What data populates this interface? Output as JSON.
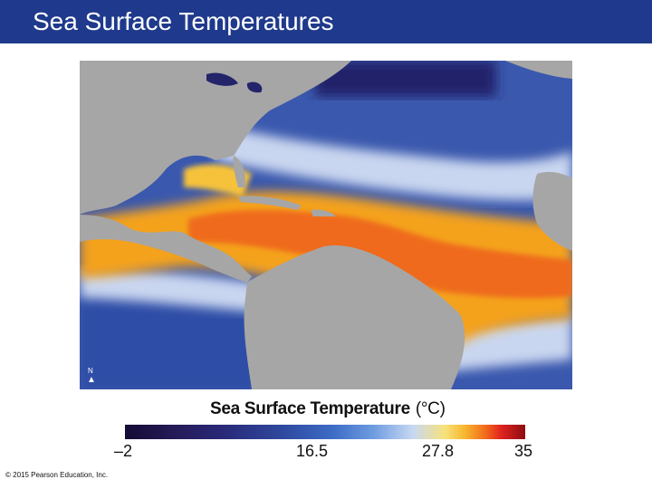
{
  "header": {
    "title": "Sea Surface Temperatures"
  },
  "colors": {
    "header_bg": "#1f3a8c",
    "land": "#a6a6a6",
    "ocean_cold": "#2a3f8f",
    "ocean_warm": "#f08a1a"
  },
  "map": {
    "north_arrow_label": "N"
  },
  "scale": {
    "title": "Sea Surface Temperature",
    "unit": "(°C)",
    "ticks": [
      "–2",
      "16.5",
      "27.8",
      "35"
    ]
  },
  "footer": {
    "copyright": "© 2015 Pearson Education, Inc."
  }
}
